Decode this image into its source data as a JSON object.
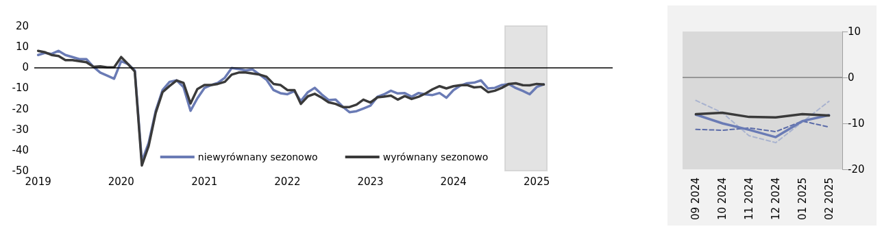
{
  "chart_data": [
    {
      "type": "line",
      "x": [
        "2019-01",
        "2019-02",
        "2019-03",
        "2019-04",
        "2019-05",
        "2019-06",
        "2019-07",
        "2019-08",
        "2019-09",
        "2019-10",
        "2019-11",
        "2019-12",
        "2020-01",
        "2020-02",
        "2020-03",
        "2020-04",
        "2020-05",
        "2020-06",
        "2020-07",
        "2020-08",
        "2020-09",
        "2020-10",
        "2020-11",
        "2020-12",
        "2021-01",
        "2021-02",
        "2021-03",
        "2021-04",
        "2021-05",
        "2021-06",
        "2021-07",
        "2021-08",
        "2021-09",
        "2021-10",
        "2021-11",
        "2021-12",
        "2022-01",
        "2022-02",
        "2022-03",
        "2022-04",
        "2022-05",
        "2022-06",
        "2022-07",
        "2022-08",
        "2022-09",
        "2022-10",
        "2022-11",
        "2022-12",
        "2023-01",
        "2023-02",
        "2023-03",
        "2023-04",
        "2023-05",
        "2023-06",
        "2023-07",
        "2023-08",
        "2023-09",
        "2023-10",
        "2023-11",
        "2023-12",
        "2024-01",
        "2024-02",
        "2024-03",
        "2024-04",
        "2024-05",
        "2024-06",
        "2024-07",
        "2024-08",
        "2024-09",
        "2024-10",
        "2024-11",
        "2024-12",
        "2025-01",
        "2025-02"
      ],
      "series": [
        {
          "name": "niewyrównany sezonowo",
          "color": "#6a7bb5",
          "values": [
            6,
            7,
            6.5,
            8,
            6,
            5,
            4,
            4,
            0.3,
            -2.5,
            -4,
            -5.5,
            3,
            1.5,
            -1.5,
            -45.5,
            -36.5,
            -21,
            -11,
            -7,
            -6.3,
            -9.5,
            -21,
            -15,
            -10,
            -8.5,
            -7.5,
            -5,
            -0.3,
            -0.8,
            -1.5,
            -1,
            -3.5,
            -6,
            -11,
            -12.5,
            -13,
            -11.5,
            -16.3,
            -12,
            -9.9,
            -13.1,
            -15.8,
            -15.6,
            -19,
            -21.7,
            -21.2,
            -19.9,
            -18.5,
            -14.2,
            -13.1,
            -11.3,
            -12.6,
            -12.4,
            -14.2,
            -12.4,
            -13.1,
            -13.4,
            -12.4,
            -14.7,
            -11,
            -8.8,
            -7.7,
            -7.4,
            -6.3,
            -10.2,
            -9.9,
            -8.5,
            -8.1,
            -10,
            -11.4,
            -13,
            -9.5,
            -8.2
          ]
        },
        {
          "name": "wyrównany sezonowo",
          "color": "#3a3a3a",
          "values": [
            8,
            7.3,
            6,
            5.5,
            3.5,
            3.5,
            3,
            2.5,
            0.3,
            0.5,
            0,
            0,
            5,
            1.5,
            -2,
            -47.5,
            -38,
            -22,
            -12,
            -9,
            -6.3,
            -7.5,
            -17.5,
            -10.5,
            -8.5,
            -8.5,
            -8,
            -7,
            -3.5,
            -2.5,
            -2.5,
            -3,
            -3.5,
            -4.5,
            -8,
            -8.5,
            -11,
            -11,
            -17.7,
            -14,
            -12.8,
            -14.7,
            -16.9,
            -17.7,
            -19.2,
            -19.2,
            -18,
            -15.6,
            -17,
            -14.5,
            -14.2,
            -13.7,
            -15.6,
            -13.9,
            -15.3,
            -14.2,
            -12.6,
            -10.6,
            -9.1,
            -10.2,
            -9.1,
            -8.6,
            -8.6,
            -9.7,
            -9.4,
            -12,
            -11.3,
            -9.9,
            -8,
            -7.7,
            -8.6,
            -8.7,
            -8,
            -8.3
          ]
        }
      ],
      "xlim": [
        "2018-12-15",
        "2025-12"
      ],
      "xticks": [
        {
          "value": "2019-01",
          "label": "2019"
        },
        {
          "value": "2020-01",
          "label": "2020"
        },
        {
          "value": "2021-01",
          "label": "2021"
        },
        {
          "value": "2022-01",
          "label": "2022"
        },
        {
          "value": "2023-01",
          "label": "2023"
        },
        {
          "value": "2024-01",
          "label": "2024"
        },
        {
          "value": "2025-01",
          "label": "2025"
        }
      ],
      "ylim": [
        -50,
        20
      ],
      "yticks": [
        -50,
        -40,
        -30,
        -20,
        -10,
        0,
        10,
        20
      ],
      "ref_lines": [
        {
          "axis": "y",
          "value": 0,
          "color": "#000000"
        }
      ],
      "bands": [
        {
          "axis": "x",
          "from": "2024-08-15",
          "to": "2025-02-15",
          "color": "#d9d9d9"
        }
      ],
      "legend": "bottom",
      "marker": "none",
      "grid": false
    },
    {
      "type": "line",
      "categories": [
        "09 2024",
        "10 2024",
        "11 2024",
        "12 2024",
        "01 2025",
        "02 2025"
      ],
      "series": [
        {
          "color": "#a9b3cf",
          "line_style": "dashed",
          "values": [
            -5,
            -7.7,
            -12.7,
            -14.2,
            -9.7,
            -5.2
          ]
        },
        {
          "color": "#5b6ba8",
          "line_style": "dashed",
          "values": [
            -11.3,
            -11.5,
            -11,
            -11.8,
            -9.5,
            -10.8
          ]
        },
        {
          "color": "#6a7bb5",
          "line_style": "solid",
          "values": [
            -8.1,
            -10,
            -11.4,
            -13,
            -9.5,
            -8.2
          ]
        },
        {
          "color": "#3a3a3a",
          "line_style": "solid",
          "values": [
            -8,
            -7.7,
            -8.6,
            -8.7,
            -8,
            -8.3
          ]
        }
      ],
      "ylim": [
        -20,
        10
      ],
      "yticks": [
        -20,
        -10,
        0,
        10
      ],
      "ref_lines": [
        {
          "axis": "y",
          "value": 0,
          "color": "#808080"
        }
      ],
      "bands": [
        {
          "axis": "y",
          "from": -20,
          "to": 10,
          "color": "#d9d9d9"
        }
      ],
      "marker": "none",
      "grid": false
    }
  ]
}
